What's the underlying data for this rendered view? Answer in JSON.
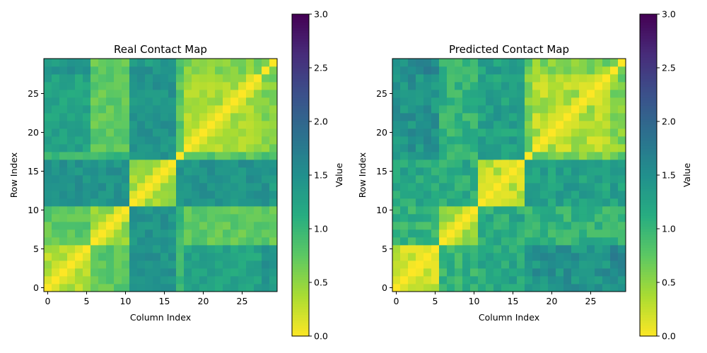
{
  "chart_data": [
    {
      "type": "heatmap",
      "title": "Real Contact Map",
      "xlabel": "Column Index",
      "ylabel": "Row Index",
      "colorbar_label": "Value",
      "colormap": "viridis_r",
      "vmin": 0,
      "vmax": 3,
      "size": 30,
      "origin": "lower",
      "x_ticks": [
        "0",
        "5",
        "10",
        "15",
        "20",
        "25"
      ],
      "y_ticks": [
        "0",
        "5",
        "10",
        "15",
        "20",
        "25"
      ],
      "colorbar_ticks": [
        "0.0",
        "0.5",
        "1.0",
        "1.5",
        "2.0",
        "2.5",
        "3.0"
      ],
      "block_boundaries": [
        0,
        6,
        11,
        17,
        18,
        28,
        29,
        30
      ],
      "block_values": [
        [
          0.35,
          0.75,
          1.45,
          0.95,
          1.25,
          1.55,
          1.35
        ],
        [
          0.75,
          0.45,
          1.45,
          0.95,
          0.75,
          0.75,
          0.75
        ],
        [
          1.45,
          1.45,
          0.45,
          1.45,
          1.45,
          1.45,
          1.35
        ],
        [
          0.95,
          0.95,
          1.45,
          0.0,
          0.75,
          0.95,
          0.95
        ],
        [
          1.25,
          0.75,
          1.45,
          0.75,
          0.4,
          0.55,
          0.6
        ],
        [
          1.55,
          0.75,
          1.45,
          0.95,
          0.55,
          0.35,
          0.6
        ],
        [
          1.35,
          0.75,
          1.35,
          0.95,
          0.6,
          0.6,
          0.0
        ]
      ],
      "noise": 0.15,
      "seed": 7
    },
    {
      "type": "heatmap",
      "title": "Predicted Contact Map",
      "xlabel": "Column Index",
      "ylabel": "Row Index",
      "colorbar_label": "Value",
      "colormap": "viridis_r",
      "vmin": 0,
      "vmax": 3,
      "size": 30,
      "origin": "lower",
      "x_ticks": [
        "0",
        "5",
        "10",
        "15",
        "20",
        "25"
      ],
      "y_ticks": [
        "0",
        "5",
        "10",
        "15",
        "20",
        "25"
      ],
      "colorbar_ticks": [
        "0.0",
        "0.5",
        "1.0",
        "1.5",
        "2.0",
        "2.5",
        "3.0"
      ],
      "block_boundaries": [
        0,
        6,
        11,
        17,
        18,
        28,
        29,
        30
      ],
      "block_values": [
        [
          0.25,
          1.05,
          1.2,
          1.35,
          1.45,
          1.6,
          1.55
        ],
        [
          1.05,
          0.4,
          1.15,
          1.05,
          1.05,
          1.05,
          1.05
        ],
        [
          1.2,
          1.15,
          0.3,
          1.3,
          1.3,
          1.3,
          1.2
        ],
        [
          1.35,
          1.05,
          1.3,
          0.0,
          0.65,
          0.85,
          0.8
        ],
        [
          1.45,
          1.05,
          1.3,
          0.65,
          0.35,
          0.55,
          0.6
        ],
        [
          1.6,
          1.05,
          1.3,
          0.85,
          0.55,
          0.25,
          0.55
        ],
        [
          1.55,
          1.05,
          1.2,
          0.8,
          0.6,
          0.55,
          0.0
        ]
      ],
      "noise": 0.22,
      "seed": 23
    }
  ]
}
